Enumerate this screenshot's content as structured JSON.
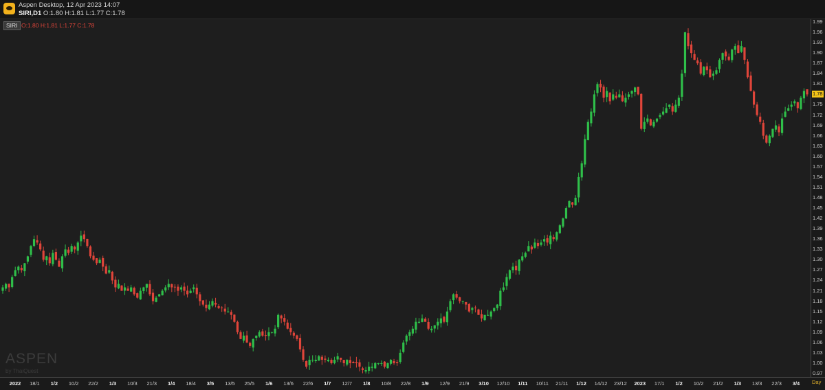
{
  "window": {
    "title": "Aspen Desktop, 12 Apr 2023 14:07",
    "symbol_tf": "SIRI,D1",
    "ohlc": "O:1.80 H:1.81 L:1.77 C:1.78"
  },
  "chart": {
    "symbol_tag": "SIRI",
    "ohlc_overlay": "O:1.80 H:1.81 L:1.77 C:1.78",
    "watermark": "ASPEN",
    "watermark_sub": "by ThaiQuest",
    "current_price_label": "1.78",
    "timeframe_button": "Day"
  },
  "colors": {
    "up": "#2fbf4a",
    "down": "#e0453a",
    "background": "#1e1e1e",
    "price_marker": "#f5c518"
  },
  "chart_data": {
    "type": "candlestick",
    "y_ticks": [
      "1.99",
      "1.96",
      "1.93",
      "1.90",
      "1.87",
      "1.84",
      "1.81",
      "1.78",
      "1.75",
      "1.72",
      "1.69",
      "1.66",
      "1.63",
      "1.60",
      "1.57",
      "1.54",
      "1.51",
      "1.48",
      "1.45",
      "1.42",
      "1.39",
      "1.36",
      "1.33",
      "1.30",
      "1.27",
      "1.24",
      "1.21",
      "1.18",
      "1.15",
      "1.12",
      "1.09",
      "1.06",
      "1.03",
      "1.00",
      "0.97"
    ],
    "x_ticks": [
      {
        "label": "2022",
        "bold": true
      },
      {
        "label": "18/1",
        "bold": false
      },
      {
        "label": "1/2",
        "bold": true
      },
      {
        "label": "10/2",
        "bold": false
      },
      {
        "label": "22/2",
        "bold": false
      },
      {
        "label": "1/3",
        "bold": true
      },
      {
        "label": "10/3",
        "bold": false
      },
      {
        "label": "21/3",
        "bold": false
      },
      {
        "label": "1/4",
        "bold": true
      },
      {
        "label": "18/4",
        "bold": false
      },
      {
        "label": "3/5",
        "bold": true
      },
      {
        "label": "13/5",
        "bold": false
      },
      {
        "label": "25/5",
        "bold": false
      },
      {
        "label": "1/6",
        "bold": true
      },
      {
        "label": "13/6",
        "bold": false
      },
      {
        "label": "22/6",
        "bold": false
      },
      {
        "label": "1/7",
        "bold": true
      },
      {
        "label": "12/7",
        "bold": false
      },
      {
        "label": "1/8",
        "bold": true
      },
      {
        "label": "10/8",
        "bold": false
      },
      {
        "label": "22/8",
        "bold": false
      },
      {
        "label": "1/9",
        "bold": true
      },
      {
        "label": "12/9",
        "bold": false
      },
      {
        "label": "21/9",
        "bold": false
      },
      {
        "label": "3/10",
        "bold": true
      },
      {
        "label": "12/10",
        "bold": false
      },
      {
        "label": "1/11",
        "bold": true
      },
      {
        "label": "10/11",
        "bold": false
      },
      {
        "label": "21/11",
        "bold": false
      },
      {
        "label": "1/12",
        "bold": true
      },
      {
        "label": "14/12",
        "bold": false
      },
      {
        "label": "23/12",
        "bold": false
      },
      {
        "label": "2023",
        "bold": true
      },
      {
        "label": "17/1",
        "bold": false
      },
      {
        "label": "1/2",
        "bold": true
      },
      {
        "label": "10/2",
        "bold": false
      },
      {
        "label": "21/2",
        "bold": false
      },
      {
        "label": "1/3",
        "bold": true
      },
      {
        "label": "13/3",
        "bold": false
      },
      {
        "label": "22/3",
        "bold": false
      },
      {
        "label": "3/4",
        "bold": true
      }
    ],
    "closes": [
      1.22,
      1.23,
      1.22,
      1.25,
      1.27,
      1.28,
      1.27,
      1.29,
      1.31,
      1.34,
      1.36,
      1.35,
      1.33,
      1.3,
      1.31,
      1.29,
      1.32,
      1.3,
      1.28,
      1.31,
      1.33,
      1.32,
      1.34,
      1.33,
      1.35,
      1.37,
      1.36,
      1.34,
      1.31,
      1.3,
      1.29,
      1.3,
      1.28,
      1.26,
      1.27,
      1.24,
      1.22,
      1.23,
      1.21,
      1.22,
      1.21,
      1.22,
      1.2,
      1.19,
      1.21,
      1.22,
      1.23,
      1.2,
      1.18,
      1.19,
      1.2,
      1.21,
      1.22,
      1.23,
      1.22,
      1.22,
      1.21,
      1.22,
      1.21,
      1.2,
      1.21,
      1.22,
      1.2,
      1.18,
      1.17,
      1.16,
      1.17,
      1.18,
      1.17,
      1.16,
      1.16,
      1.15,
      1.15,
      1.14,
      1.12,
      1.09,
      1.07,
      1.08,
      1.06,
      1.05,
      1.07,
      1.08,
      1.09,
      1.08,
      1.08,
      1.09,
      1.09,
      1.1,
      1.14,
      1.13,
      1.12,
      1.1,
      1.09,
      1.08,
      1.07,
      1.04,
      1.01,
      0.99,
      1.01,
      1.01,
      1.01,
      1.02,
      1.01,
      1.01,
      1.01,
      1.0,
      1.01,
      1.02,
      1.01,
      1.0,
      1.01,
      1.0,
      1.0,
      1.0,
      0.99,
      0.98,
      0.98,
      0.99,
      0.99,
      1.0,
      1.0,
      1.0,
      0.99,
      1.0,
      1.01,
      1.0,
      1.0,
      1.03,
      1.06,
      1.08,
      1.09,
      1.1,
      1.12,
      1.12,
      1.13,
      1.12,
      1.1,
      1.1,
      1.11,
      1.12,
      1.13,
      1.12,
      1.15,
      1.18,
      1.2,
      1.19,
      1.18,
      1.18,
      1.17,
      1.15,
      1.16,
      1.16,
      1.14,
      1.13,
      1.14,
      1.14,
      1.15,
      1.16,
      1.17,
      1.21,
      1.22,
      1.25,
      1.27,
      1.28,
      1.27,
      1.3,
      1.31,
      1.32,
      1.34,
      1.33,
      1.35,
      1.34,
      1.35,
      1.36,
      1.35,
      1.37,
      1.36,
      1.38,
      1.4,
      1.42,
      1.45,
      1.47,
      1.46,
      1.48,
      1.54,
      1.58,
      1.65,
      1.7,
      1.73,
      1.78,
      1.81,
      1.8,
      1.77,
      1.79,
      1.76,
      1.78,
      1.77,
      1.78,
      1.76,
      1.77,
      1.78,
      1.79,
      1.8,
      1.78,
      1.68,
      1.7,
      1.71,
      1.69,
      1.7,
      1.71,
      1.72,
      1.73,
      1.74,
      1.75,
      1.73,
      1.75,
      1.77,
      1.84,
      1.96,
      1.92,
      1.9,
      1.88,
      1.87,
      1.84,
      1.86,
      1.85,
      1.83,
      1.84,
      1.85,
      1.88,
      1.9,
      1.89,
      1.88,
      1.91,
      1.92,
      1.9,
      1.92,
      1.88,
      1.83,
      1.79,
      1.75,
      1.72,
      1.7,
      1.66,
      1.64,
      1.66,
      1.68,
      1.69,
      1.67,
      1.71,
      1.73,
      1.74,
      1.75,
      1.76,
      1.74,
      1.77,
      1.79,
      1.78
    ]
  }
}
